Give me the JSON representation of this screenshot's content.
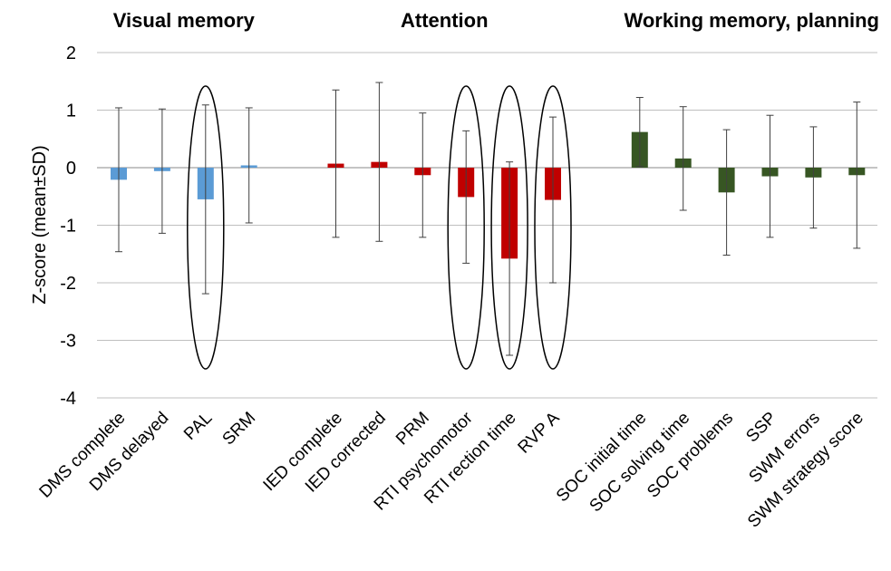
{
  "chart_data": {
    "type": "bar",
    "ylabel": "Z-score (mean±SD)",
    "ylim": [
      -4,
      2
    ],
    "yticks": [
      2,
      1,
      0,
      -1,
      -2,
      -3,
      -4
    ],
    "grid": true,
    "groups": [
      {
        "title": "Visual memory",
        "color": "#5B9BD5"
      },
      {
        "title": "Attention",
        "color": "#C00000"
      },
      {
        "title": "Working memory, planning",
        "color": "#375623"
      }
    ],
    "categories": [
      "DMS complete",
      "DMS delayed",
      "PAL",
      "SRM",
      "IED complete",
      "IED corrected",
      "PRM",
      "RTI psychomotor",
      "RTI rection time",
      "RVP A",
      "SOC initial time",
      "SOC solving time",
      "SOC problems",
      "SSP",
      "SWM errors",
      "SWM strategy score"
    ],
    "category_group": [
      0,
      0,
      0,
      0,
      1,
      1,
      1,
      1,
      1,
      1,
      2,
      2,
      2,
      2,
      2,
      2
    ],
    "values": [
      -0.21,
      -0.06,
      -0.55,
      0.04,
      0.07,
      0.1,
      -0.13,
      -0.51,
      -1.58,
      -0.56,
      0.62,
      0.16,
      -0.43,
      -0.15,
      -0.17,
      -0.13
    ],
    "sd": [
      1.25,
      1.08,
      1.64,
      1.0,
      1.28,
      1.38,
      1.08,
      1.15,
      1.68,
      1.44,
      0.6,
      0.9,
      1.09,
      1.06,
      0.88,
      1.27
    ],
    "highlighted": [
      "PAL",
      "RTI psychomotor",
      "RTI rection time",
      "RVP A"
    ]
  }
}
